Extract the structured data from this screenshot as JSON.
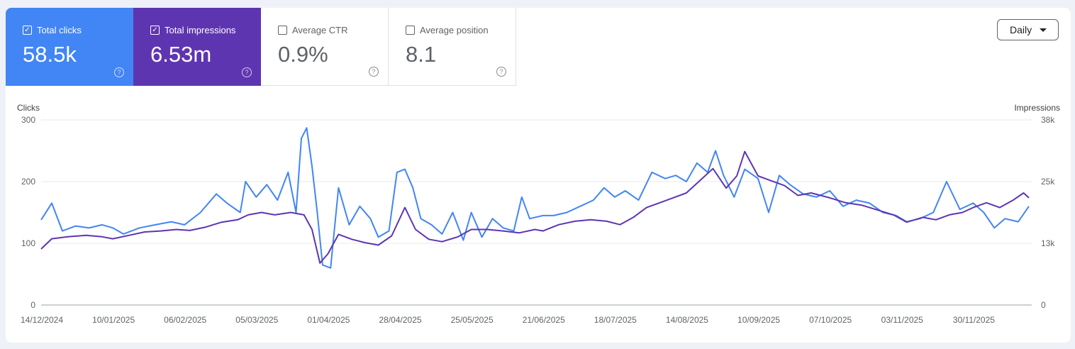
{
  "metrics": {
    "clicks": {
      "label": "Total clicks",
      "value": "58.5k",
      "checked": true
    },
    "impressions": {
      "label": "Total impressions",
      "value": "6.53m",
      "checked": true
    },
    "ctr": {
      "label": "Average CTR",
      "value": "0.9%",
      "checked": false
    },
    "position": {
      "label": "Average position",
      "value": "8.1",
      "checked": false
    }
  },
  "granularity": {
    "selected": "Daily"
  },
  "colors": {
    "clicks": "#4285f4",
    "impressions": "#5e35b1",
    "grid": "#e8eaed"
  },
  "icons": {
    "checkbox": "checkbox-icon",
    "help": "help-circle-icon",
    "dropdown": "chevron-down-icon"
  },
  "chart_data": {
    "type": "line",
    "ylabel": "Clicks",
    "y2label": "Impressions",
    "ylim": [
      0,
      300
    ],
    "y2lim": [
      0,
      38000
    ],
    "yticks": [
      "0",
      "100",
      "200",
      "300"
    ],
    "y2ticks": [
      "0",
      "13k",
      "25k",
      "38k"
    ],
    "xticks": [
      "14/12/2024",
      "10/01/2025",
      "06/02/2025",
      "05/03/2025",
      "01/04/2025",
      "28/04/2025",
      "25/05/2025",
      "21/06/2025",
      "18/07/2025",
      "14/08/2025",
      "10/09/2025",
      "07/10/2025",
      "03/11/2025",
      "30/11/2025"
    ],
    "x_start": "14/12/2024",
    "x_end": "21/12/2025",
    "grid": true,
    "series": [
      {
        "name": "Clicks",
        "axis": "left",
        "points": [
          [
            "14/12/2024",
            138
          ],
          [
            "18/12/2024",
            165
          ],
          [
            "22/12/2024",
            120
          ],
          [
            "27/12/2024",
            128
          ],
          [
            "01/01/2025",
            125
          ],
          [
            "06/01/2025",
            130
          ],
          [
            "10/01/2025",
            125
          ],
          [
            "14/01/2025",
            115
          ],
          [
            "20/01/2025",
            125
          ],
          [
            "26/01/2025",
            130
          ],
          [
            "01/02/2025",
            135
          ],
          [
            "06/02/2025",
            130
          ],
          [
            "12/02/2025",
            150
          ],
          [
            "18/02/2025",
            180
          ],
          [
            "22/02/2025",
            165
          ],
          [
            "27/02/2025",
            150
          ],
          [
            "01/03/2025",
            200
          ],
          [
            "05/03/2025",
            175
          ],
          [
            "09/03/2025",
            195
          ],
          [
            "13/03/2025",
            170
          ],
          [
            "17/03/2025",
            215
          ],
          [
            "20/03/2025",
            150
          ],
          [
            "22/03/2025",
            270
          ],
          [
            "24/03/2025",
            287
          ],
          [
            "26/03/2025",
            225
          ],
          [
            "28/03/2025",
            150
          ],
          [
            "30/03/2025",
            65
          ],
          [
            "02/04/2025",
            60
          ],
          [
            "05/04/2025",
            190
          ],
          [
            "09/04/2025",
            130
          ],
          [
            "13/04/2025",
            160
          ],
          [
            "17/04/2025",
            140
          ],
          [
            "20/04/2025",
            110
          ],
          [
            "24/04/2025",
            120
          ],
          [
            "27/04/2025",
            215
          ],
          [
            "30/04/2025",
            220
          ],
          [
            "03/05/2025",
            190
          ],
          [
            "06/05/2025",
            140
          ],
          [
            "10/05/2025",
            130
          ],
          [
            "14/05/2025",
            115
          ],
          [
            "18/05/2025",
            150
          ],
          [
            "22/05/2025",
            105
          ],
          [
            "25/05/2025",
            150
          ],
          [
            "29/05/2025",
            110
          ],
          [
            "02/06/2025",
            140
          ],
          [
            "06/06/2025",
            125
          ],
          [
            "10/06/2025",
            120
          ],
          [
            "13/06/2025",
            175
          ],
          [
            "16/06/2025",
            140
          ],
          [
            "21/06/2025",
            145
          ],
          [
            "25/06/2025",
            145
          ],
          [
            "30/06/2025",
            150
          ],
          [
            "05/07/2025",
            160
          ],
          [
            "10/07/2025",
            170
          ],
          [
            "14/07/2025",
            190
          ],
          [
            "18/07/2025",
            175
          ],
          [
            "22/07/2025",
            185
          ],
          [
            "27/07/2025",
            170
          ],
          [
            "01/08/2025",
            215
          ],
          [
            "06/08/2025",
            205
          ],
          [
            "10/08/2025",
            210
          ],
          [
            "14/08/2025",
            200
          ],
          [
            "18/08/2025",
            230
          ],
          [
            "22/08/2025",
            215
          ],
          [
            "25/08/2025",
            250
          ],
          [
            "28/08/2025",
            210
          ],
          [
            "01/09/2025",
            175
          ],
          [
            "05/09/2025",
            220
          ],
          [
            "10/09/2025",
            205
          ],
          [
            "14/09/2025",
            150
          ],
          [
            "18/09/2025",
            210
          ],
          [
            "22/09/2025",
            195
          ],
          [
            "27/09/2025",
            180
          ],
          [
            "02/10/2025",
            175
          ],
          [
            "07/10/2025",
            185
          ],
          [
            "12/10/2025",
            160
          ],
          [
            "17/10/2025",
            170
          ],
          [
            "22/10/2025",
            165
          ],
          [
            "27/10/2025",
            150
          ],
          [
            "01/11/2025",
            145
          ],
          [
            "05/11/2025",
            135
          ],
          [
            "10/11/2025",
            140
          ],
          [
            "15/11/2025",
            150
          ],
          [
            "20/11/2025",
            200
          ],
          [
            "25/11/2025",
            155
          ],
          [
            "30/11/2025",
            165
          ],
          [
            "04/12/2025",
            150
          ],
          [
            "08/12/2025",
            125
          ],
          [
            "12/12/2025",
            140
          ],
          [
            "17/12/2025",
            135
          ],
          [
            "21/12/2025",
            160
          ]
        ]
      },
      {
        "name": "Impressions",
        "axis": "right",
        "points": [
          [
            "14/12/2024",
            11500
          ],
          [
            "18/12/2024",
            13600
          ],
          [
            "24/12/2024",
            14000
          ],
          [
            "31/12/2024",
            14300
          ],
          [
            "06/01/2025",
            14000
          ],
          [
            "10/01/2025",
            13600
          ],
          [
            "16/01/2025",
            14300
          ],
          [
            "22/01/2025",
            15000
          ],
          [
            "28/01/2025",
            15200
          ],
          [
            "03/02/2025",
            15500
          ],
          [
            "08/02/2025",
            15300
          ],
          [
            "14/02/2025",
            16000
          ],
          [
            "20/02/2025",
            17000
          ],
          [
            "26/02/2025",
            17500
          ],
          [
            "02/03/2025",
            18500
          ],
          [
            "07/03/2025",
            19000
          ],
          [
            "12/03/2025",
            18500
          ],
          [
            "18/03/2025",
            19000
          ],
          [
            "23/03/2025",
            18500
          ],
          [
            "26/03/2025",
            15500
          ],
          [
            "29/03/2025",
            8600
          ],
          [
            "01/04/2025",
            10500
          ],
          [
            "05/04/2025",
            14500
          ],
          [
            "10/04/2025",
            13500
          ],
          [
            "15/04/2025",
            12800
          ],
          [
            "20/04/2025",
            12300
          ],
          [
            "25/04/2025",
            14200
          ],
          [
            "30/04/2025",
            20000
          ],
          [
            "04/05/2025",
            15500
          ],
          [
            "09/05/2025",
            13500
          ],
          [
            "14/05/2025",
            13000
          ],
          [
            "20/05/2025",
            14000
          ],
          [
            "25/05/2025",
            15500
          ],
          [
            "31/05/2025",
            15500
          ],
          [
            "06/06/2025",
            15200
          ],
          [
            "12/06/2025",
            14800
          ],
          [
            "18/06/2025",
            15500
          ],
          [
            "21/06/2025",
            15200
          ],
          [
            "27/06/2025",
            16500
          ],
          [
            "03/07/2025",
            17200
          ],
          [
            "09/07/2025",
            17500
          ],
          [
            "15/07/2025",
            17200
          ],
          [
            "20/07/2025",
            16500
          ],
          [
            "25/07/2025",
            18000
          ],
          [
            "30/07/2025",
            20000
          ],
          [
            "04/08/2025",
            21000
          ],
          [
            "09/08/2025",
            22000
          ],
          [
            "14/08/2025",
            23000
          ],
          [
            "19/08/2025",
            25500
          ],
          [
            "24/08/2025",
            28000
          ],
          [
            "29/08/2025",
            24000
          ],
          [
            "02/09/2025",
            26500
          ],
          [
            "05/09/2025",
            31500
          ],
          [
            "10/09/2025",
            26500
          ],
          [
            "15/09/2025",
            25500
          ],
          [
            "20/09/2025",
            24500
          ],
          [
            "25/09/2025",
            22500
          ],
          [
            "30/09/2025",
            23000
          ],
          [
            "07/10/2025",
            22000
          ],
          [
            "13/10/2025",
            21000
          ],
          [
            "19/10/2025",
            20500
          ],
          [
            "25/10/2025",
            19500
          ],
          [
            "31/10/2025",
            18500
          ],
          [
            "05/11/2025",
            17000
          ],
          [
            "11/11/2025",
            18000
          ],
          [
            "16/11/2025",
            17500
          ],
          [
            "21/11/2025",
            18500
          ],
          [
            "26/11/2025",
            19000
          ],
          [
            "30/11/2025",
            20000
          ],
          [
            "05/12/2025",
            21000
          ],
          [
            "10/12/2025",
            20000
          ],
          [
            "15/12/2025",
            21500
          ],
          [
            "19/12/2025",
            23000
          ],
          [
            "21/12/2025",
            22000
          ]
        ]
      }
    ]
  }
}
